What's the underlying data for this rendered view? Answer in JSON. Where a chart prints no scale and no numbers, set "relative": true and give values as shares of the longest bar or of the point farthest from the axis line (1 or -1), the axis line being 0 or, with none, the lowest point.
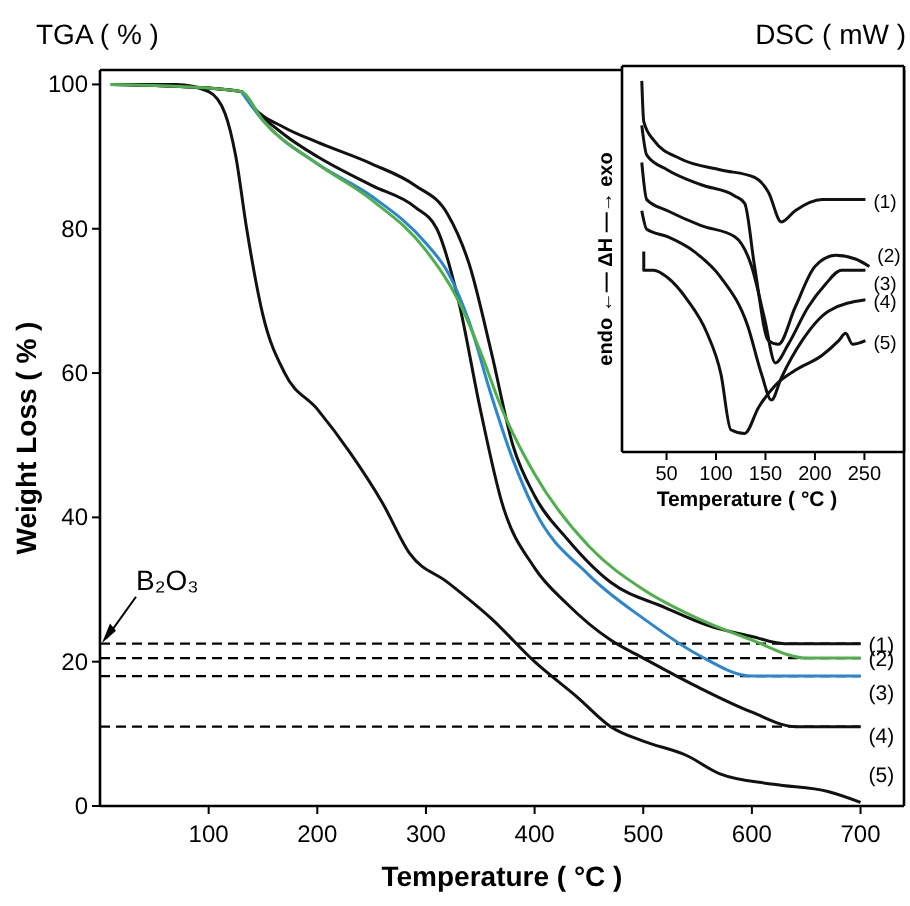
{
  "chart_data": [
    {
      "type": "line",
      "title": "TGA ( % )",
      "xlabel": "Temperature ( °C )",
      "ylabel": "Weight Loss ( % )",
      "xlim": [
        0,
        740
      ],
      "xticks": [
        100,
        200,
        300,
        400,
        500,
        600,
        700
      ],
      "ylim": [
        0,
        102
      ],
      "yticks": [
        0,
        20,
        40,
        60,
        80,
        100
      ],
      "grid": false,
      "line_style": "solid",
      "marker": "none",
      "annotations": [
        "B₂O₃"
      ],
      "ref_lines": [
        {
          "axis": "y",
          "value": 22.5,
          "color": "#000000",
          "line_style": "dashed"
        },
        {
          "axis": "y",
          "value": 20.5,
          "color": "#000000",
          "line_style": "dashed"
        },
        {
          "axis": "y",
          "value": 18,
          "color": "#000000",
          "line_style": "dashed"
        },
        {
          "axis": "y",
          "value": 11,
          "color": "#000000",
          "line_style": "dashed"
        }
      ],
      "series": [
        {
          "name": "(1)",
          "color": "#111111",
          "x": [
            10,
            100,
            130,
            140,
            170,
            200,
            250,
            290,
            320,
            340,
            360,
            380,
            400,
            430,
            470,
            520,
            560,
            600,
            630,
            700
          ],
          "values": [
            100,
            99.5,
            99,
            97,
            94,
            92,
            89,
            86,
            82,
            75,
            63,
            50,
            43,
            37,
            31,
            27.5,
            25,
            23.5,
            22.5,
            22.5
          ]
        },
        {
          "name": "(2)",
          "color": "#4fb04a",
          "x": [
            10,
            100,
            130,
            150,
            200,
            250,
            300,
            330,
            350,
            370,
            400,
            450,
            500,
            550,
            600,
            650,
            700
          ],
          "values": [
            100,
            99.5,
            99,
            95,
            89,
            84,
            77,
            70,
            63,
            55,
            46,
            36,
            30,
            26,
            23,
            20.5,
            20.5
          ]
        },
        {
          "name": "(3)",
          "color": "#2a86d0",
          "x": [
            130,
            150,
            200,
            250,
            300,
            320,
            340,
            360,
            380,
            400,
            450,
            500,
            550,
            600,
            700
          ],
          "values": [
            99,
            95,
            89,
            84.5,
            78,
            74,
            67,
            57,
            48,
            41,
            32,
            26,
            21,
            18,
            18
          ]
        },
        {
          "name": "(4)",
          "color": "#111111",
          "x": [
            10,
            100,
            130,
            140,
            170,
            200,
            250,
            290,
            310,
            330,
            350,
            370,
            400,
            430,
            470,
            500,
            550,
            600,
            640,
            700
          ],
          "values": [
            100,
            99.5,
            99,
            97,
            93,
            90,
            86,
            83,
            80,
            70,
            55,
            42,
            33,
            28,
            23,
            20.5,
            16.5,
            13,
            11,
            11
          ]
        },
        {
          "name": "(5)",
          "color": "#111111",
          "x": [
            10,
            70,
            100,
            115,
            125,
            135,
            150,
            170,
            200,
            230,
            260,
            285,
            320,
            360,
            400,
            440,
            470,
            500,
            540,
            570,
            620,
            670,
            700
          ],
          "values": [
            100,
            100,
            99,
            96,
            90,
            80,
            68,
            60,
            55,
            49,
            42,
            35,
            31,
            26,
            20,
            15,
            11,
            9,
            7,
            4.5,
            3,
            2,
            0.5
          ]
        }
      ]
    },
    {
      "type": "line",
      "title": "DSC ( mW )",
      "xlabel": "Temperature ( °C )",
      "ylabel": "endo ←— ΔH —→ exo",
      "relative": true,
      "xlim": [
        5,
        290
      ],
      "xticks": [
        50,
        100,
        150,
        200,
        250
      ],
      "line_style": "solid",
      "marker": "none",
      "series": [
        {
          "name": "(1)",
          "color": "#111111",
          "x": [
            25,
            27,
            37,
            64,
            105,
            139,
            153,
            166,
            180,
            207,
            234,
            251
          ],
          "values": [
            1.0,
            0.89,
            0.84,
            0.79,
            0.76,
            0.74,
            0.7,
            0.62,
            0.65,
            0.68,
            0.68,
            0.68
          ]
        },
        {
          "name": "(2)",
          "color": "#111111",
          "x": [
            25,
            30,
            51,
            85,
            119,
            129,
            139,
            153,
            163,
            180,
            200,
            221,
            241,
            255
          ],
          "values": [
            0.88,
            0.8,
            0.76,
            0.72,
            0.69,
            0.67,
            0.5,
            0.3,
            0.29,
            0.39,
            0.5,
            0.53,
            0.52,
            0.5
          ]
        },
        {
          "name": "(3)",
          "color": "#111111",
          "x": [
            25,
            30,
            51,
            85,
            119,
            136,
            149,
            160,
            173,
            193,
            210,
            227,
            251
          ],
          "values": [
            0.78,
            0.68,
            0.65,
            0.61,
            0.58,
            0.5,
            0.36,
            0.24,
            0.29,
            0.39,
            0.45,
            0.49,
            0.49
          ]
        },
        {
          "name": "(4)",
          "color": "#111111",
          "x": [
            25,
            30,
            51,
            78,
            105,
            132,
            146,
            156,
            166,
            187,
            214,
            251
          ],
          "values": [
            0.65,
            0.6,
            0.58,
            0.54,
            0.47,
            0.34,
            0.21,
            0.14,
            0.2,
            0.3,
            0.38,
            0.41
          ]
        },
        {
          "name": "(5)",
          "color": "#111111",
          "x": [
            27,
            27,
            37,
            51,
            71,
            91,
            105,
            115,
            129,
            143,
            160,
            180,
            207,
            224,
            231,
            238,
            251
          ],
          "values": [
            0.54,
            0.49,
            0.49,
            0.47,
            0.41,
            0.32,
            0.21,
            0.06,
            0.05,
            0.12,
            0.18,
            0.22,
            0.26,
            0.3,
            0.32,
            0.29,
            0.3
          ]
        }
      ]
    }
  ]
}
